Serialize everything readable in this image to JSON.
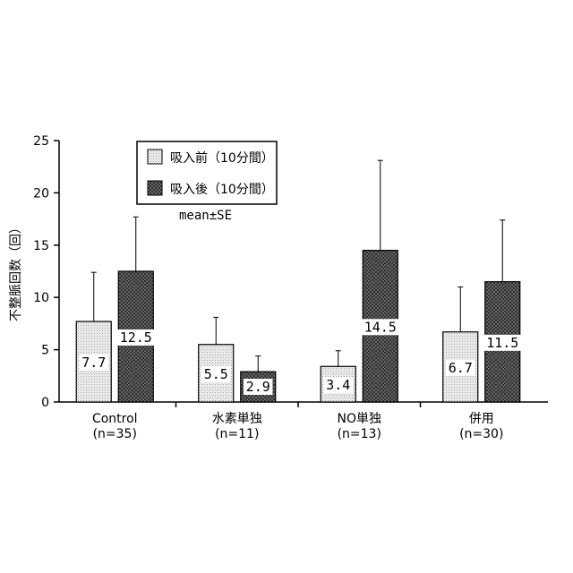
{
  "chart_data": {
    "type": "bar",
    "ylabel": "不整脈回数（回）",
    "ylim": [
      0,
      25
    ],
    "yticks": [
      0,
      5,
      10,
      15,
      20,
      25
    ],
    "categories": [
      {
        "name": "Control",
        "n": "(n=35)"
      },
      {
        "name": "水素単独",
        "n": "(n=11)"
      },
      {
        "name": "NO単独",
        "n": "(n=13)"
      },
      {
        "name": "併用",
        "n": "(n=30)"
      }
    ],
    "series": [
      {
        "name": "吸入前（10分間）",
        "pattern": "light-dotted",
        "values": [
          7.7,
          5.5,
          3.4,
          6.7
        ],
        "errors": [
          4.7,
          2.6,
          1.5,
          4.3
        ],
        "labels": [
          "7.7",
          "5.5",
          "3.4",
          "6.7"
        ]
      },
      {
        "name": "吸入後（10分間）",
        "pattern": "dark-crosshatch",
        "values": [
          12.5,
          2.9,
          14.5,
          11.5
        ],
        "errors": [
          5.2,
          1.5,
          8.6,
          5.9
        ],
        "labels": [
          "12.5",
          "2.9",
          "14.5",
          "11.5"
        ]
      }
    ],
    "annotation": "mean±SE",
    "legend_position": "top-left",
    "grid": false
  }
}
